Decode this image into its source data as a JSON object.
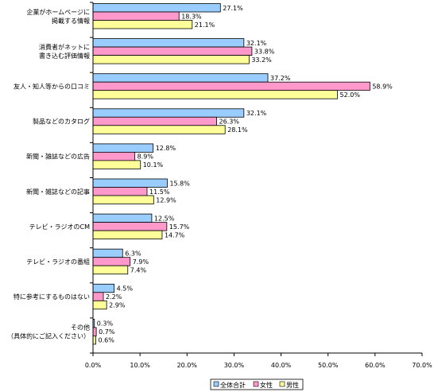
{
  "chart_data": {
    "type": "bar",
    "orientation": "horizontal",
    "categories": [
      [
        "企業がホームページに",
        "掲載する情報"
      ],
      [
        "消費者がネットに",
        "書き込む評価情報"
      ],
      [
        "友人・知人等からの口コミ"
      ],
      [
        "製品などのカタログ"
      ],
      [
        "新聞・雑誌などの広告"
      ],
      [
        "新聞・雑誌などの記事"
      ],
      [
        "テレビ・ラジオのCM"
      ],
      [
        "テレビ・ラジオの番組"
      ],
      [
        "特に参考にするものはない"
      ],
      [
        "その他",
        "（具体的にご記入ください）"
      ]
    ],
    "series": [
      {
        "name": "全体合計",
        "color": "#99ccff",
        "values": [
          27.1,
          32.1,
          37.2,
          32.1,
          12.8,
          15.8,
          12.5,
          6.3,
          4.5,
          0.3
        ]
      },
      {
        "name": "女性",
        "color": "#ff99cc",
        "values": [
          18.3,
          33.8,
          58.9,
          26.3,
          8.9,
          11.5,
          15.7,
          7.9,
          2.2,
          0.7
        ]
      },
      {
        "name": "男性",
        "color": "#ffff99",
        "values": [
          21.1,
          33.2,
          52.0,
          28.1,
          10.1,
          12.9,
          14.7,
          7.4,
          2.9,
          0.6
        ]
      }
    ],
    "value_labels": [
      [
        "27.1%",
        "18.3%",
        "21.1%"
      ],
      [
        "32.1%",
        "33.8%",
        "33.2%"
      ],
      [
        "37.2%",
        "58.9%",
        "52.0%"
      ],
      [
        "32.1%",
        "26.3%",
        "28.1%"
      ],
      [
        "12.8%",
        "8.9%",
        "10.1%"
      ],
      [
        "15.8%",
        "11.5%",
        "12.9%"
      ],
      [
        "12.5%",
        "15.7%",
        "14.7%"
      ],
      [
        "6.3%",
        "7.9%",
        "7.4%"
      ],
      [
        "4.5%",
        "2.2%",
        "2.9%"
      ],
      [
        "0.3%",
        "0.7%",
        "0.6%"
      ]
    ],
    "xlim": [
      0,
      70
    ],
    "ticks": [
      0,
      10,
      20,
      30,
      40,
      50,
      60,
      70
    ],
    "tick_labels": [
      "0.0%",
      "10.0%",
      "20.0%",
      "30.0%",
      "40.0%",
      "50.0%",
      "60.0%",
      "70.0%"
    ],
    "legend_position": "bottom-right",
    "grid": false,
    "title": "",
    "xlabel": "",
    "ylabel": ""
  }
}
